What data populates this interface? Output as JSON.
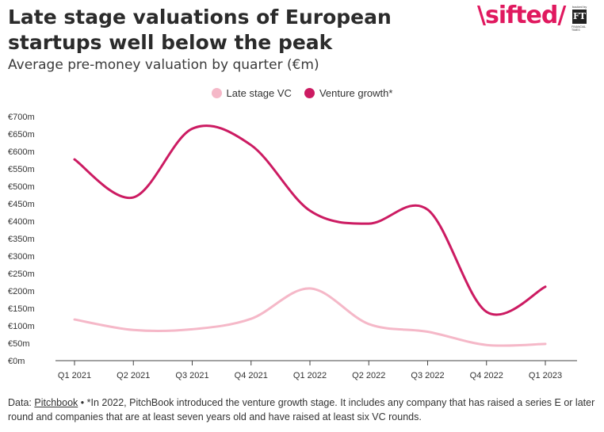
{
  "header": {
    "title": "Late stage valuations of European startups well below the peak",
    "subtitle": "Average pre-money valuation by quarter (€m)"
  },
  "brand": {
    "name": "sifted",
    "partner_tag": "backed by",
    "partner_logo": "FT",
    "partner_sub": "FINANCIAL TIMES",
    "color": "#e0195f"
  },
  "footer": {
    "source_label": "Data:",
    "source_name": "Pitchbook",
    "note": " • *In 2022, PitchBook introduced the venture growth stage. It includes any company that has raised a series E or later round and companies that are at least seven years old and have raised at least six VC rounds."
  },
  "chart_data": {
    "type": "line",
    "categories": [
      "Q1 2021",
      "Q2 2021",
      "Q3 2021",
      "Q4 2021",
      "Q1 2022",
      "Q2 2022",
      "Q3 2022",
      "Q4 2022",
      "Q1 2023"
    ],
    "y_ticks": [
      "€0m",
      "€50m",
      "€100m",
      "€150m",
      "€200m",
      "€250m",
      "€300m",
      "€350m",
      "€400m",
      "€450m",
      "€500m",
      "€550m",
      "€600m",
      "€650m",
      "€700m"
    ],
    "ylim": [
      0,
      700
    ],
    "grid": false,
    "legend_position": "top-center",
    "series": [
      {
        "name": "Late stage VC",
        "color": "#f5b8c8",
        "values": [
          118,
          88,
          90,
          120,
          207,
          105,
          83,
          45,
          48
        ]
      },
      {
        "name": "Venture growth*",
        "color": "#cc1b62",
        "values": [
          577,
          468,
          665,
          618,
          430,
          393,
          433,
          140,
          212
        ]
      }
    ]
  }
}
